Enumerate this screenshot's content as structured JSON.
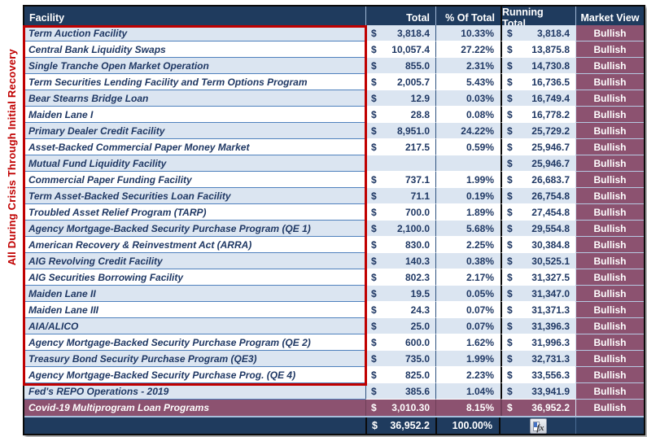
{
  "side_label": "All During Crisis Through Initial Recovery",
  "currency_symbol": "$",
  "table": {
    "columns": [
      "Facility",
      "Total",
      "% Of Total",
      "Running Total",
      "Market View"
    ],
    "rows": [
      {
        "facility": "Term Auction Facility",
        "total": "3,818.4",
        "pct": "10.33%",
        "running": "3,818.4",
        "view": "Bullish"
      },
      {
        "facility": "Central Bank Liquidity Swaps",
        "total": "10,057.4",
        "pct": "27.22%",
        "running": "13,875.8",
        "view": "Bullish"
      },
      {
        "facility": "Single Tranche Open Market Operation",
        "total": "855.0",
        "pct": "2.31%",
        "running": "14,730.8",
        "view": "Bullish"
      },
      {
        "facility": "Term Securities Lending Facility and Term Options Program",
        "total": "2,005.7",
        "pct": "5.43%",
        "running": "16,736.5",
        "view": "Bullish"
      },
      {
        "facility": "Bear Stearns Bridge Loan",
        "total": "12.9",
        "pct": "0.03%",
        "running": "16,749.4",
        "view": "Bullish"
      },
      {
        "facility": "Maiden Lane I",
        "total": "28.8",
        "pct": "0.08%",
        "running": "16,778.2",
        "view": "Bullish"
      },
      {
        "facility": "Primary Dealer Credit Facility",
        "total": "8,951.0",
        "pct": "24.22%",
        "running": "25,729.2",
        "view": "Bullish"
      },
      {
        "facility": "Asset-Backed Commercial Paper Money Market",
        "total": "217.5",
        "pct": "0.59%",
        "running": "25,946.7",
        "view": "Bullish"
      },
      {
        "facility": "Mutual Fund Liquidity Facility",
        "total": "",
        "pct": "",
        "running": "25,946.7",
        "view": "Bullish"
      },
      {
        "facility": "Commercial Paper Funding Facility",
        "total": "737.1",
        "pct": "1.99%",
        "running": "26,683.7",
        "view": "Bullish"
      },
      {
        "facility": "Term Asset-Backed Securities Loan Facility",
        "total": "71.1",
        "pct": "0.19%",
        "running": "26,754.8",
        "view": "Bullish"
      },
      {
        "facility": "Troubled Asset Relief Program (TARP)",
        "total": "700.0",
        "pct": "1.89%",
        "running": "27,454.8",
        "view": "Bullish"
      },
      {
        "facility": "Agency Mortgage-Backed Security Purchase Program (QE 1)",
        "total": "2,100.0",
        "pct": "5.68%",
        "running": "29,554.8",
        "view": "Bullish"
      },
      {
        "facility": "American Recovery & Reinvestment Act (ARRA)",
        "total": "830.0",
        "pct": "2.25%",
        "running": "30,384.8",
        "view": "Bullish"
      },
      {
        "facility": "AIG Revolving Credit Facility",
        "total": "140.3",
        "pct": "0.38%",
        "running": "30,525.1",
        "view": "Bullish"
      },
      {
        "facility": "AIG Securities Borrowing Facility",
        "total": "802.3",
        "pct": "2.17%",
        "running": "31,327.5",
        "view": "Bullish"
      },
      {
        "facility": "Maiden Lane II",
        "total": "19.5",
        "pct": "0.05%",
        "running": "31,347.0",
        "view": "Bullish"
      },
      {
        "facility": "Maiden Lane III",
        "total": "24.3",
        "pct": "0.07%",
        "running": "31,371.3",
        "view": "Bullish"
      },
      {
        "facility": "AIA/ALICO",
        "total": "25.0",
        "pct": "0.07%",
        "running": "31,396.3",
        "view": "Bullish"
      },
      {
        "facility": "Agency Mortgage-Backed Security Purchase Program (QE 2)",
        "total": "600.0",
        "pct": "1.62%",
        "running": "31,996.3",
        "view": "Bullish"
      },
      {
        "facility": "Treasury Bond Security Purchase Program (QE3)",
        "total": "735.0",
        "pct": "1.99%",
        "running": "32,731.3",
        "view": "Bullish"
      },
      {
        "facility": "Agency Mortgage-Backed Security Purchase Prog. (QE 4)",
        "total": "825.0",
        "pct": "2.23%",
        "running": "33,556.3",
        "view": "Bullish"
      },
      {
        "facility": "Fed's REPO Operations - 2019",
        "total": "385.6",
        "pct": "1.04%",
        "running": "33,941.9",
        "view": "Bullish"
      },
      {
        "facility": "Covid-19 Multiprogram Loan Programs",
        "total": "3,010.30",
        "pct": "8.15%",
        "running": "36,952.2",
        "view": "Bullish",
        "highlight": "plum"
      }
    ],
    "totals": {
      "total": "36,952.2",
      "pct": "100.00%"
    }
  },
  "icons": {
    "fx_smart_tag": "fx"
  },
  "colors": {
    "header_navy": "#1F3B5E",
    "row_light_blue": "#DBE5F1",
    "row_white": "#FFFFFF",
    "text_navy": "#1F3864",
    "plum": "#8C5270",
    "highlight_red": "#C00000"
  }
}
